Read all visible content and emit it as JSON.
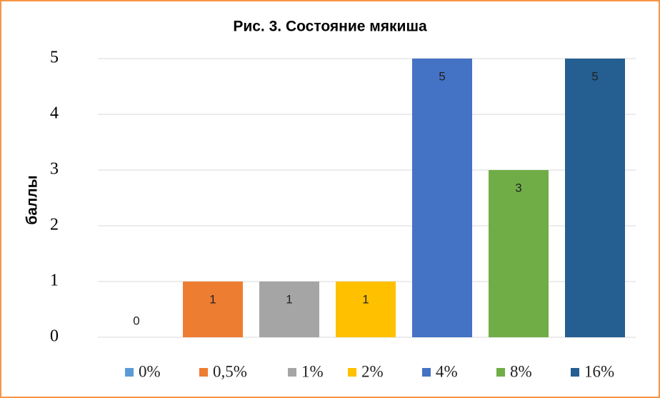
{
  "chart_data": {
    "type": "bar",
    "title": "Рис. 3. Состояние мякиша",
    "y_label": "баллы",
    "categories": [
      null
    ],
    "series": [
      {
        "name": "0%",
        "color": "#5b9bd5",
        "values": [
          0
        ]
      },
      {
        "name": "0,5%",
        "color": "#ed7d31",
        "values": [
          1
        ]
      },
      {
        "name": "1%",
        "color": "#a5a5a5",
        "values": [
          1
        ]
      },
      {
        "name": "2%",
        "color": "#ffc000",
        "values": [
          1
        ]
      },
      {
        "name": "4%",
        "color": "#4472c4",
        "values": [
          5
        ]
      },
      {
        "name": "8%",
        "color": "#70ad47",
        "values": [
          3
        ]
      },
      {
        "name": "16%",
        "color": "#255e91",
        "values": [
          5
        ]
      }
    ],
    "ylim": [
      0,
      5
    ],
    "yticks": [
      0,
      1,
      2,
      3,
      4,
      5
    ],
    "grid": true,
    "legend": "bottom",
    "data_labels": true
  }
}
